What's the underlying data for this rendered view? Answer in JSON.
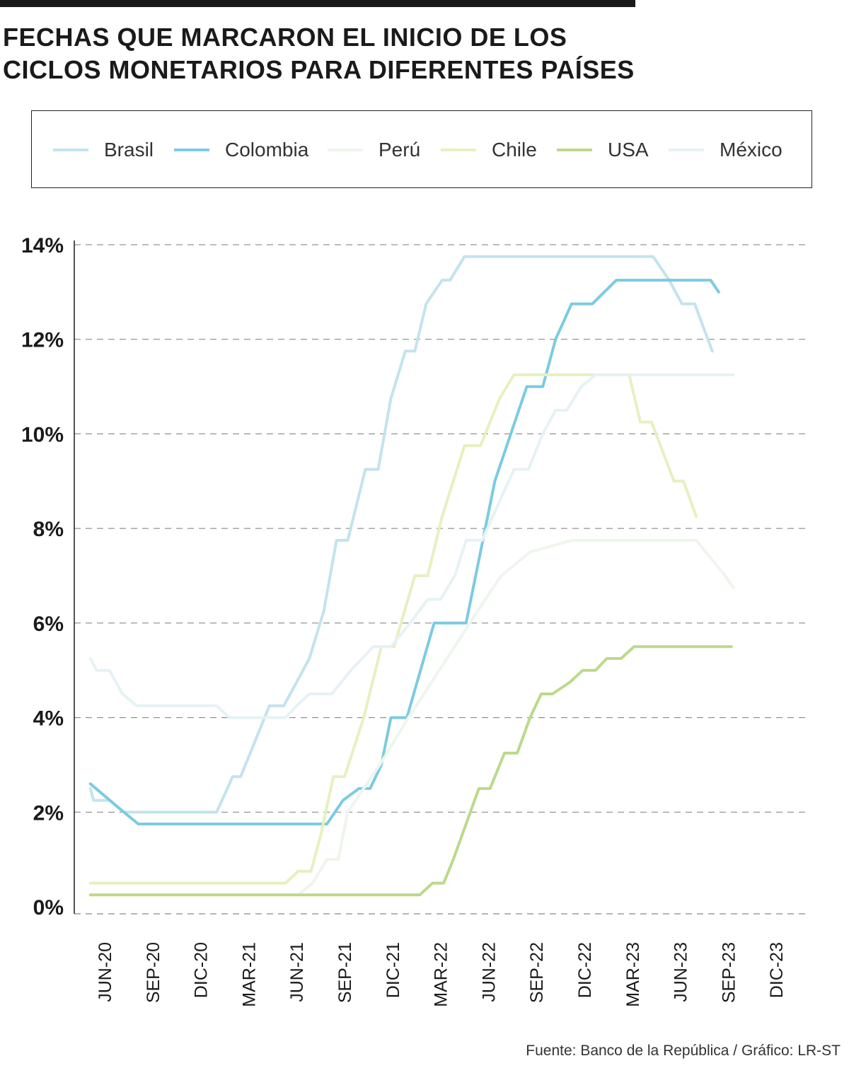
{
  "header": {
    "title_line1": "FECHAS QUE MARCARON EL INICIO DE LOS",
    "title_line2": "CICLOS MONETARIOS PARA DIFERENTES PAÍSES"
  },
  "legend": [
    {
      "label": "Brasil",
      "color": "#c3e3ee"
    },
    {
      "label": "Colombia",
      "color": "#7ccbe0"
    },
    {
      "label": "Perú",
      "color": "#eef5ec"
    },
    {
      "label": "Chile",
      "color": "#e7f0c0"
    },
    {
      "label": "USA",
      "color": "#bcd98a"
    },
    {
      "label": "México",
      "color": "#e6f2f4"
    }
  ],
  "footer": {
    "source": "Fuente: Banco de la República / Gráfico: LR-ST"
  },
  "chart_data": {
    "type": "line",
    "title": "FECHAS QUE MARCARON EL INICIO DE LOS CICLOS MONETARIOS PARA DIFERENTES PAÍSES",
    "xlabel": "",
    "ylabel": "",
    "ylim": [
      0,
      14
    ],
    "yticks": [
      "0%",
      "2%",
      "4%",
      "6%",
      "8%",
      "10%",
      "12%",
      "14%"
    ],
    "grid": "horizontal dashed",
    "x_unit": "months since Jun-2020 (0 = Jun-20)",
    "xlim": [
      -1,
      42
    ],
    "xticks": [
      {
        "x": 0,
        "label": "JUN-20"
      },
      {
        "x": 3,
        "label": "SEP-20"
      },
      {
        "x": 6,
        "label": "DIC-20"
      },
      {
        "x": 9,
        "label": "MAR-21"
      },
      {
        "x": 12,
        "label": "JUN-21"
      },
      {
        "x": 15,
        "label": "SEP-21"
      },
      {
        "x": 18,
        "label": "DIC-21"
      },
      {
        "x": 21,
        "label": "MAR-22"
      },
      {
        "x": 24,
        "label": "JUN-22"
      },
      {
        "x": 27,
        "label": "SEP-22"
      },
      {
        "x": 30,
        "label": "DIC-22"
      },
      {
        "x": 33,
        "label": "MAR-23"
      },
      {
        "x": 36,
        "label": "JUN-23"
      },
      {
        "x": 39,
        "label": "SEP-23"
      },
      {
        "x": 42,
        "label": "DIC-23"
      }
    ],
    "series": [
      {
        "name": "Brasil",
        "color": "#c3e3ee",
        "points": [
          [
            -0.9,
            2.5
          ],
          [
            -0.7,
            2.25
          ],
          [
            0.3,
            2.25
          ],
          [
            1.2,
            2.0
          ],
          [
            7.0,
            2.0
          ],
          [
            8.0,
            2.75
          ],
          [
            8.5,
            2.75
          ],
          [
            10.3,
            4.25
          ],
          [
            11.2,
            4.25
          ],
          [
            12.8,
            5.25
          ],
          [
            13.7,
            6.25
          ],
          [
            14.5,
            7.75
          ],
          [
            15.2,
            7.75
          ],
          [
            16.3,
            9.25
          ],
          [
            17.1,
            9.25
          ],
          [
            17.9,
            10.75
          ],
          [
            18.8,
            11.75
          ],
          [
            19.4,
            11.75
          ],
          [
            20.1,
            12.75
          ],
          [
            21.1,
            13.25
          ],
          [
            21.6,
            13.25
          ],
          [
            22.5,
            13.75
          ],
          [
            34.3,
            13.75
          ],
          [
            35.3,
            13.25
          ],
          [
            36.1,
            12.75
          ],
          [
            36.9,
            12.75
          ],
          [
            38.0,
            11.75
          ]
        ]
      },
      {
        "name": "Colombia",
        "color": "#7ccbe0",
        "points": [
          [
            -0.9,
            2.6
          ],
          [
            1.2,
            2.0
          ],
          [
            2.1,
            1.75
          ],
          [
            13.9,
            1.75
          ],
          [
            14.9,
            2.25
          ],
          [
            15.9,
            2.5
          ],
          [
            16.6,
            2.5
          ],
          [
            17.3,
            3.0
          ],
          [
            17.9,
            4.0
          ],
          [
            18.9,
            4.0
          ],
          [
            20.6,
            6.0
          ],
          [
            22.6,
            6.0
          ],
          [
            24.4,
            9.0
          ],
          [
            25.4,
            10.0
          ],
          [
            26.4,
            11.0
          ],
          [
            27.4,
            11.0
          ],
          [
            28.2,
            12.0
          ],
          [
            29.2,
            12.75
          ],
          [
            30.5,
            12.75
          ],
          [
            32.0,
            13.25
          ],
          [
            37.9,
            13.25
          ],
          [
            38.4,
            13.0
          ]
        ]
      },
      {
        "name": "Perú",
        "color": "#eef5ec",
        "points": [
          [
            12.1,
            0.25
          ],
          [
            13.0,
            0.5
          ],
          [
            13.9,
            1.0
          ],
          [
            14.6,
            1.0
          ],
          [
            15.2,
            2.0
          ],
          [
            17.2,
            3.0
          ],
          [
            18.1,
            3.5
          ],
          [
            19.0,
            4.0
          ],
          [
            23.8,
            6.5
          ],
          [
            24.8,
            7.0
          ],
          [
            26.6,
            7.5
          ],
          [
            29.2,
            7.75
          ],
          [
            37.0,
            7.75
          ],
          [
            38.2,
            7.25
          ],
          [
            38.8,
            7.0
          ],
          [
            39.3,
            6.75
          ]
        ]
      },
      {
        "name": "Chile",
        "color": "#e7f0c0",
        "points": [
          [
            -0.9,
            0.5
          ],
          [
            11.3,
            0.5
          ],
          [
            12.1,
            0.75
          ],
          [
            12.9,
            0.75
          ],
          [
            13.5,
            1.5
          ],
          [
            14.3,
            2.75
          ],
          [
            15.0,
            2.75
          ],
          [
            16.2,
            4.0
          ],
          [
            17.3,
            5.5
          ],
          [
            18.1,
            5.5
          ],
          [
            19.4,
            7.0
          ],
          [
            20.2,
            7.0
          ],
          [
            21.1,
            8.25
          ],
          [
            22.5,
            9.75
          ],
          [
            23.5,
            9.75
          ],
          [
            24.7,
            10.75
          ],
          [
            25.6,
            11.25
          ],
          [
            32.8,
            11.25
          ],
          [
            33.5,
            10.25
          ],
          [
            34.2,
            10.25
          ],
          [
            35.6,
            9.0
          ],
          [
            36.2,
            9.0
          ],
          [
            37.0,
            8.25
          ]
        ]
      },
      {
        "name": "USA",
        "color": "#bcd98a",
        "points": [
          [
            -0.9,
            0.25
          ],
          [
            19.7,
            0.25
          ],
          [
            20.5,
            0.5
          ],
          [
            21.2,
            0.5
          ],
          [
            21.8,
            1.0
          ],
          [
            22.6,
            1.75
          ],
          [
            23.4,
            2.5
          ],
          [
            24.1,
            2.5
          ],
          [
            25.0,
            3.25
          ],
          [
            25.8,
            3.25
          ],
          [
            26.6,
            4.0
          ],
          [
            27.3,
            4.5
          ],
          [
            28.0,
            4.5
          ],
          [
            29.1,
            4.75
          ],
          [
            29.9,
            5.0
          ],
          [
            30.7,
            5.0
          ],
          [
            31.4,
            5.25
          ],
          [
            32.3,
            5.25
          ],
          [
            33.1,
            5.5
          ],
          [
            39.2,
            5.5
          ]
        ]
      },
      {
        "name": "México",
        "color": "#e6f2f4",
        "points": [
          [
            -0.9,
            5.25
          ],
          [
            -0.5,
            5.0
          ],
          [
            0.3,
            5.0
          ],
          [
            1.1,
            4.5
          ],
          [
            2.0,
            4.25
          ],
          [
            7.0,
            4.25
          ],
          [
            7.8,
            4.0
          ],
          [
            11.3,
            4.0
          ],
          [
            12.0,
            4.25
          ],
          [
            12.8,
            4.5
          ],
          [
            14.2,
            4.5
          ],
          [
            15.4,
            5.0
          ],
          [
            16.8,
            5.5
          ],
          [
            17.9,
            5.5
          ],
          [
            19.1,
            6.0
          ],
          [
            20.2,
            6.5
          ],
          [
            21.0,
            6.5
          ],
          [
            21.9,
            7.0
          ],
          [
            22.6,
            7.75
          ],
          [
            23.6,
            7.75
          ],
          [
            24.6,
            8.5
          ],
          [
            25.6,
            9.25
          ],
          [
            26.5,
            9.25
          ],
          [
            27.4,
            10.0
          ],
          [
            28.2,
            10.5
          ],
          [
            28.9,
            10.5
          ],
          [
            29.8,
            11.0
          ],
          [
            30.7,
            11.25
          ],
          [
            39.3,
            11.25
          ]
        ]
      }
    ]
  }
}
